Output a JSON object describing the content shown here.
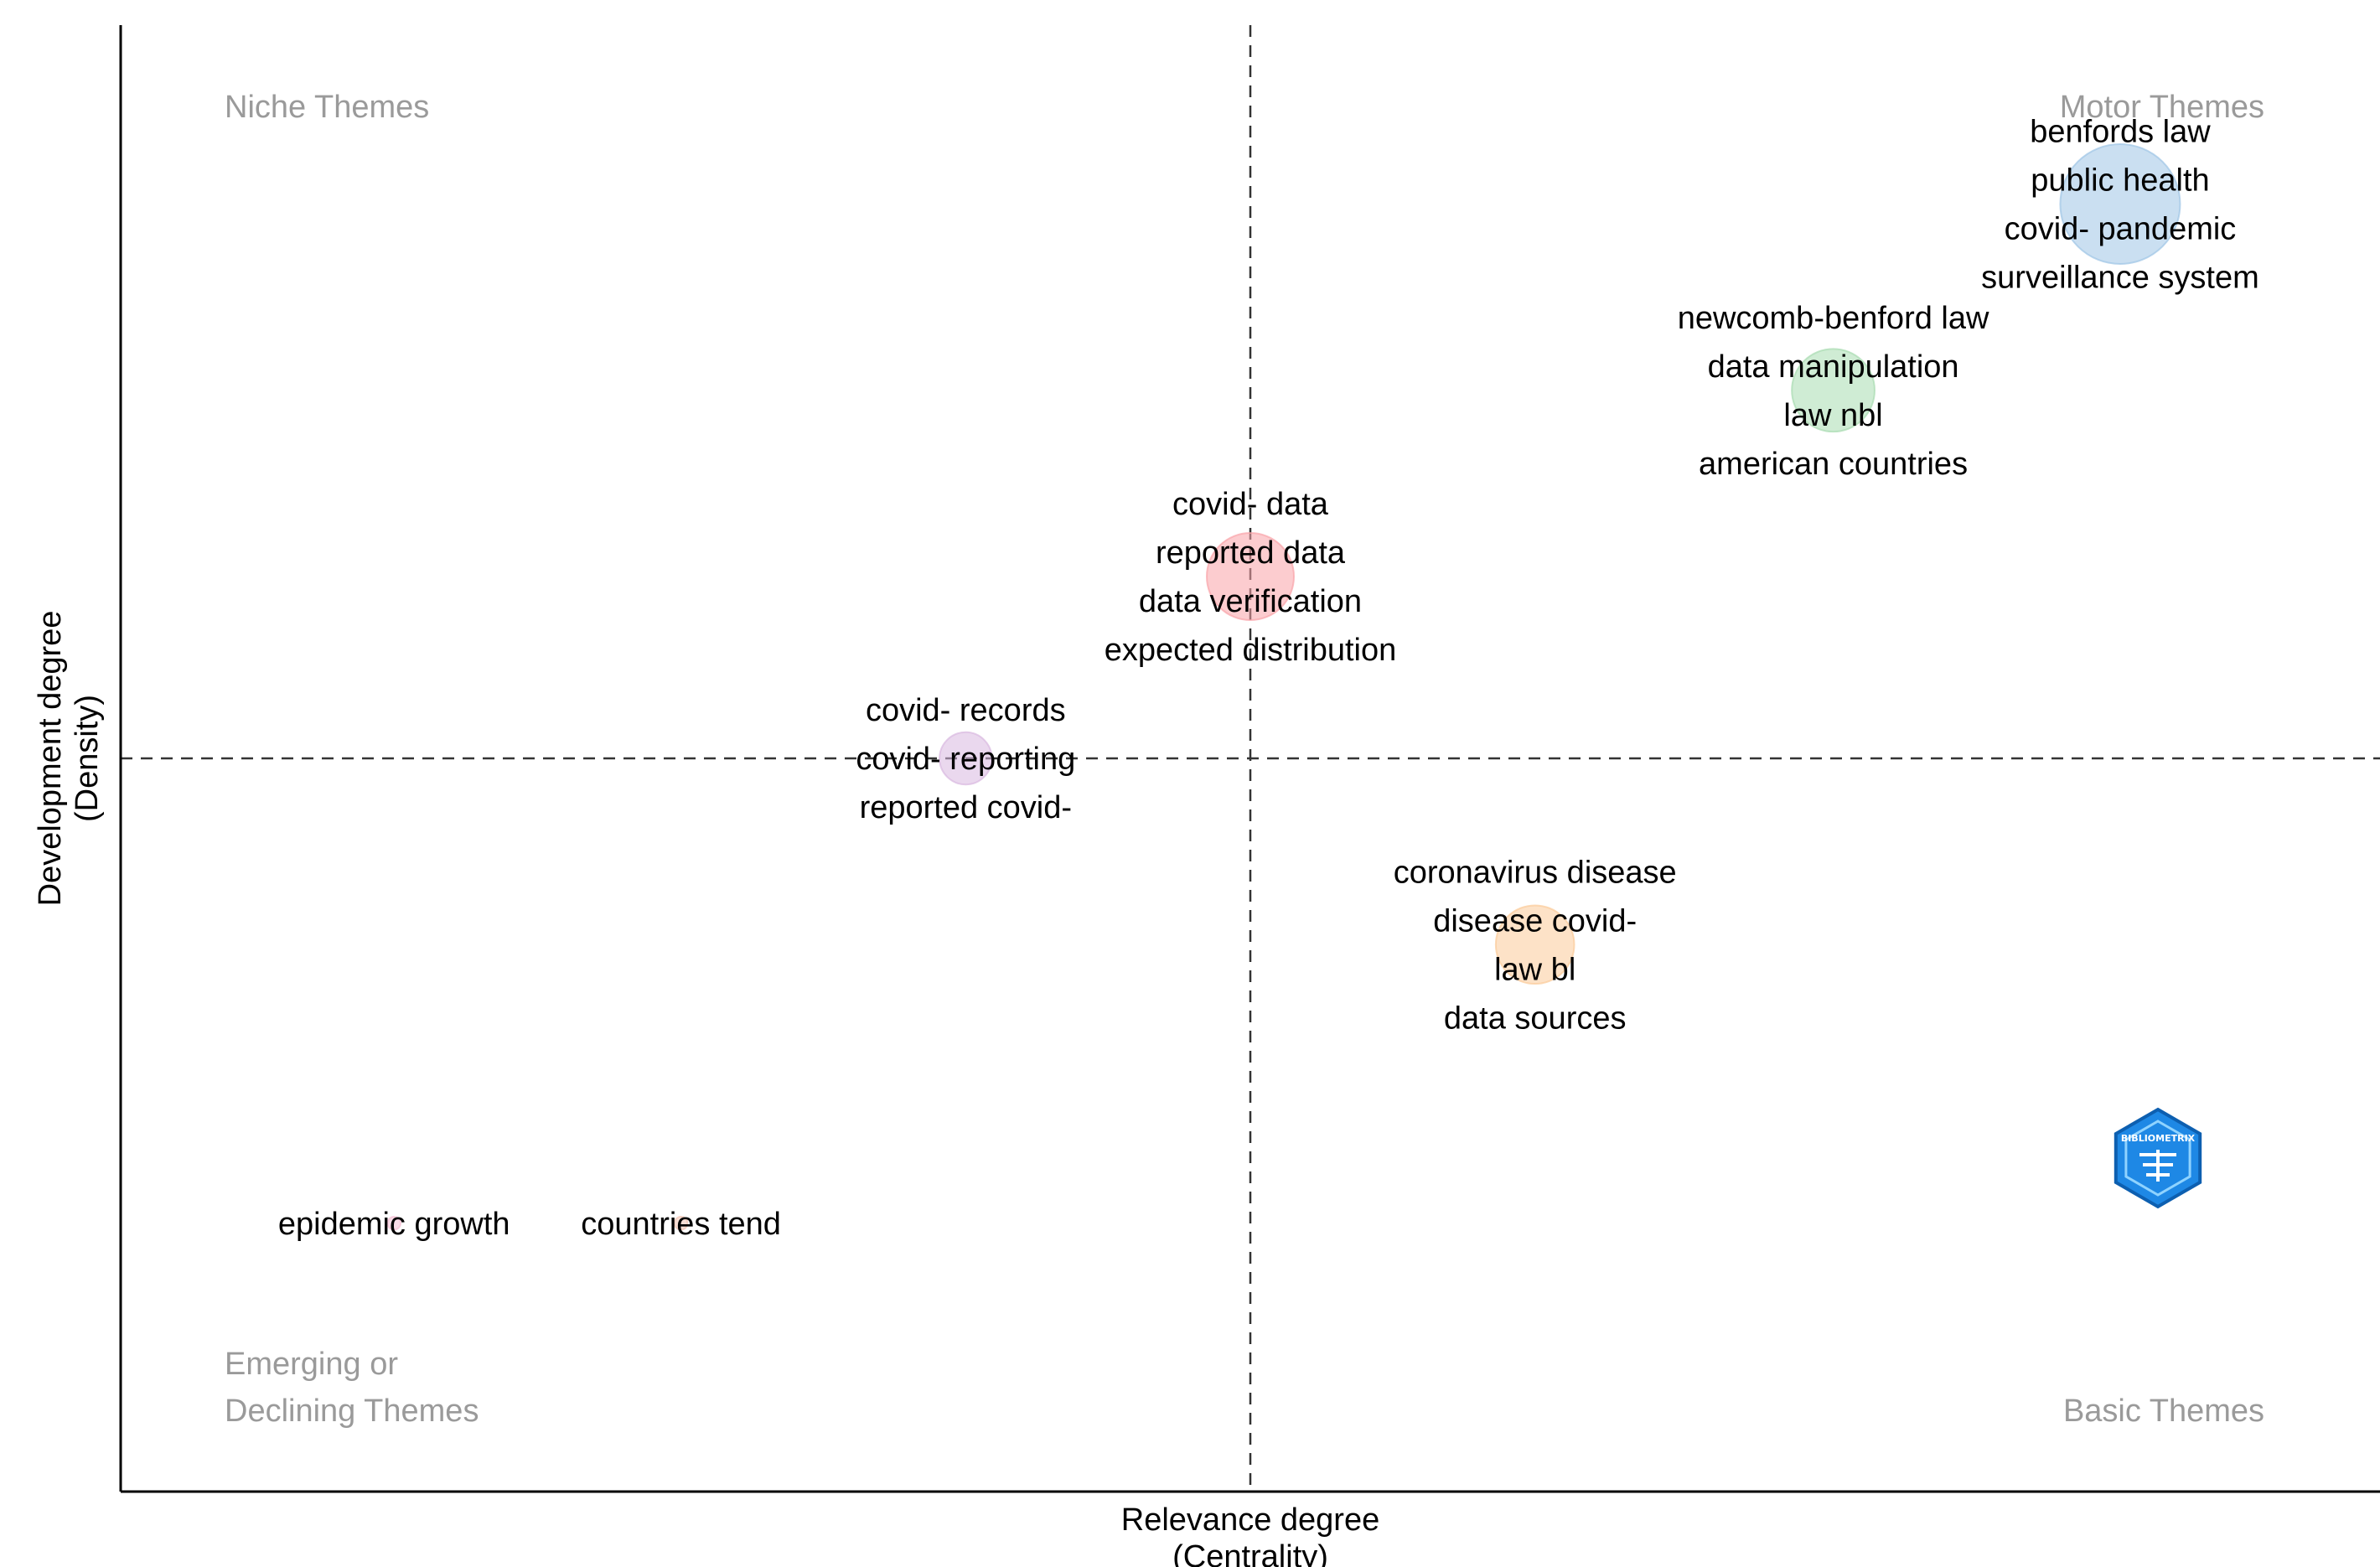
{
  "chart_data": {
    "type": "scatter",
    "title": "",
    "xlabel": [
      "Relevance degree",
      "(Centrality)"
    ],
    "ylabel": [
      "Development degree",
      "(Density)"
    ],
    "xlim": [
      0,
      100
    ],
    "ylim": [
      0,
      100
    ],
    "x_reference": 50,
    "y_reference": 50,
    "grid": false,
    "quadrants": {
      "top_left": [
        "Niche Themes"
      ],
      "top_right": [
        "Motor Themes"
      ],
      "bottom_left": [
        "Emerging or",
        "Declining Themes"
      ],
      "bottom_right": [
        "Basic Themes"
      ]
    },
    "clusters": [
      {
        "x": 88.5,
        "y": 87.8,
        "size": 55,
        "color": "#9ec4e6",
        "labels": [
          "benfords law",
          "public health",
          "covid- pandemic",
          "surveillance system"
        ]
      },
      {
        "x": 75.8,
        "y": 75.1,
        "size": 38,
        "color": "#a8dcb0",
        "labels": [
          "newcomb-benford law",
          "data manipulation",
          "law nbl",
          "american countries"
        ]
      },
      {
        "x": 50.0,
        "y": 62.4,
        "size": 40,
        "color": "#f9a3a8",
        "labels": [
          "covid- data",
          "reported data",
          "data verification",
          "expected distribution"
        ]
      },
      {
        "x": 37.4,
        "y": 50.0,
        "size": 24,
        "color": "#d8b8e0",
        "labels": [
          "covid- records",
          "covid- reporting",
          "reported covid-"
        ]
      },
      {
        "x": 62.6,
        "y": 37.3,
        "size": 36,
        "color": "#fbcb99",
        "labels": [
          "coronavirus disease",
          "disease covid-",
          "law bl",
          "data sources"
        ]
      },
      {
        "x": 12.1,
        "y": 18.3,
        "size": 6,
        "color": "#f6c0d6",
        "labels": [
          "epidemic growth"
        ]
      },
      {
        "x": 24.8,
        "y": 18.3,
        "size": 6,
        "color": "#f2c4b4",
        "labels": [
          "countries tend"
        ]
      }
    ]
  },
  "logo": {
    "text": "BIBLIOMETRIX",
    "color": "#1e88e5"
  }
}
